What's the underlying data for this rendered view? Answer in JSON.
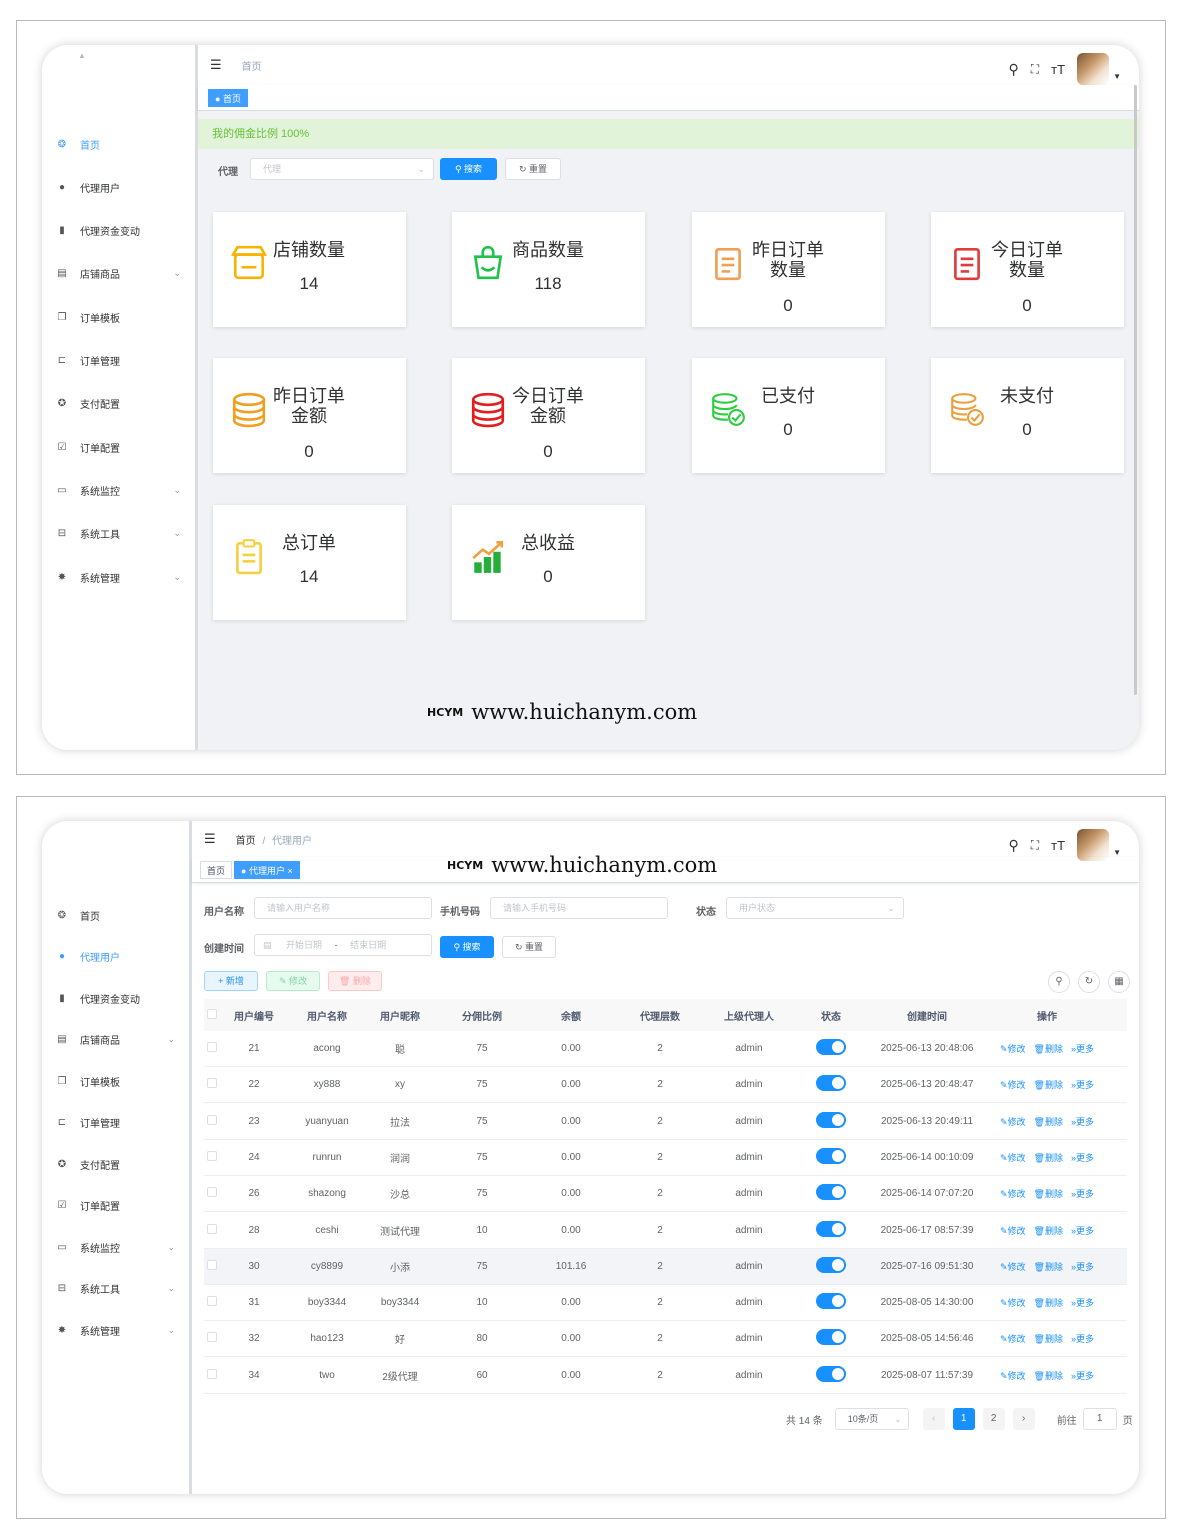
{
  "watermark": {
    "logo": "HCYM",
    "url": "www.huichanym.com"
  },
  "sidebar": {
    "items": [
      {
        "label": "首页",
        "icon": "dashboard-icon"
      },
      {
        "label": "代理用户",
        "icon": "user-icon"
      },
      {
        "label": "代理资金变动",
        "icon": "bar-chart-icon"
      },
      {
        "label": "店铺商品",
        "icon": "shop-icon",
        "submenu": true
      },
      {
        "label": "订单模板",
        "icon": "copy-icon"
      },
      {
        "label": "订单管理",
        "icon": "tree-icon"
      },
      {
        "label": "支付配置",
        "icon": "gear-icon"
      },
      {
        "label": "订单配置",
        "icon": "checkbox-icon"
      },
      {
        "label": "系统监控",
        "icon": "monitor-icon",
        "submenu": true
      },
      {
        "label": "系统工具",
        "icon": "toolbox-icon",
        "submenu": true
      },
      {
        "label": "系统管理",
        "icon": "settings-icon",
        "submenu": true
      }
    ]
  },
  "dashboard": {
    "breadcrumb": "首页",
    "tag": "首页",
    "banner": "我的佣金比例 100%",
    "filter_label": "代理",
    "filter_placeholder": "代理",
    "search_label": "搜索",
    "reset_label": "重置",
    "cards": [
      {
        "title": "店铺数量",
        "value": "14"
      },
      {
        "title": "商品数量",
        "value": "118"
      },
      {
        "title": "昨日订单\n数量",
        "value": "0"
      },
      {
        "title": "今日订单\n数量",
        "value": "0"
      },
      {
        "title": "昨日订单\n金额",
        "value": "0"
      },
      {
        "title": "今日订单\n金额",
        "value": "0"
      },
      {
        "title": "已支付",
        "value": "0"
      },
      {
        "title": "未支付",
        "value": "0"
      },
      {
        "title": "总订单",
        "value": "14"
      },
      {
        "title": "总收益",
        "value": "0"
      }
    ]
  },
  "users_page": {
    "breadcrumb_home": "首页",
    "breadcrumb_sep": "/",
    "breadcrumb_current": "代理用户",
    "tag_home": "首页",
    "tag_current": "代理用户",
    "filters": {
      "username_label": "用户名称",
      "username_placeholder": "请输入用户名称",
      "phone_label": "手机号码",
      "phone_placeholder": "请输入手机号码",
      "status_label": "状态",
      "status_placeholder": "用户状态",
      "created_label": "创建时间",
      "start_placeholder": "开始日期",
      "end_placeholder": "结束日期",
      "range_sep": "-",
      "search_label": "搜索",
      "reset_label": "重置"
    },
    "toolbar": {
      "add_label": "新增",
      "edit_label": "修改",
      "delete_label": "删除"
    },
    "columns": [
      "用户编号",
      "用户名称",
      "用户昵称",
      "分佣比例",
      "余额",
      "代理层数",
      "上级代理人",
      "状态",
      "创建时间",
      "操作"
    ],
    "rows": [
      [
        "21",
        "acong",
        "聪",
        "75",
        "0.00",
        "2",
        "admin",
        "2025-06-13 20:48:06"
      ],
      [
        "22",
        "xy888",
        "xy",
        "75",
        "0.00",
        "2",
        "admin",
        "2025-06-13 20:48:47"
      ],
      [
        "23",
        "yuanyuan",
        "拉法",
        "75",
        "0.00",
        "2",
        "admin",
        "2025-06-13 20:49:11"
      ],
      [
        "24",
        "runrun",
        "润润",
        "75",
        "0.00",
        "2",
        "admin",
        "2025-06-14 00:10:09"
      ],
      [
        "26",
        "shazong",
        "沙总",
        "75",
        "0.00",
        "2",
        "admin",
        "2025-06-14 07:07:20"
      ],
      [
        "28",
        "ceshi",
        "测试代理",
        "10",
        "0.00",
        "2",
        "admin",
        "2025-06-17 08:57:39"
      ],
      [
        "30",
        "cy8899",
        "小添",
        "75",
        "101.16",
        "2",
        "admin",
        "2025-07-16 09:51:30"
      ],
      [
        "31",
        "boy3344",
        "boy3344",
        "10",
        "0.00",
        "2",
        "admin",
        "2025-08-05 14:30:00"
      ],
      [
        "32",
        "hao123",
        "好",
        "80",
        "0.00",
        "2",
        "admin",
        "2025-08-05 14:56:46"
      ],
      [
        "34",
        "two",
        "2级代理",
        "60",
        "0.00",
        "2",
        "admin",
        "2025-08-07 11:57:39"
      ]
    ],
    "row_ops": {
      "edit": "修改",
      "delete": "删除",
      "more": "更多"
    },
    "pagination": {
      "total": "共 14 条",
      "page_size": "10条/页",
      "pages": [
        "1",
        "2"
      ],
      "goto_label": "前往",
      "goto_value": "1",
      "page_unit": "页"
    }
  },
  "colors": {
    "primary": "#1890ff",
    "success": "#67c23a",
    "banner_bg": "#e1f3d8"
  }
}
